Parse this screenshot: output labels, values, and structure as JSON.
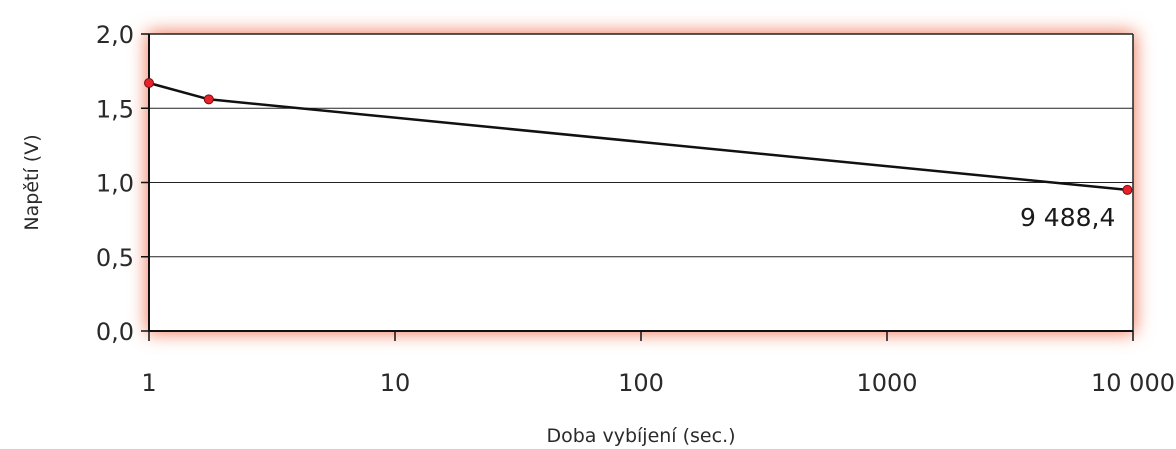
{
  "chart_data": {
    "type": "line",
    "xlabel": "Doba vybíjení (sec.)",
    "ylabel": "Napětí (V)",
    "x_scale": "log",
    "xlim": [
      1,
      10000
    ],
    "ylim": [
      0,
      2
    ],
    "x_ticks": [
      {
        "value": 1,
        "label": "1"
      },
      {
        "value": 10,
        "label": "10"
      },
      {
        "value": 100,
        "label": "100"
      },
      {
        "value": 1000,
        "label": "1000"
      },
      {
        "value": 10000,
        "label": "10 000"
      }
    ],
    "y_ticks": [
      {
        "value": 0,
        "label": "0,0"
      },
      {
        "value": 0.5,
        "label": "0,5"
      },
      {
        "value": 1,
        "label": "1,0"
      },
      {
        "value": 1.5,
        "label": "1,5"
      },
      {
        "value": 2,
        "label": "2,0"
      }
    ],
    "grid": "horizontal",
    "series": [
      {
        "x": [
          1,
          1.75,
          9488.4
        ],
        "y": [
          1.67,
          1.56,
          0.95
        ]
      }
    ],
    "annotations": [
      {
        "text": "9 488,4",
        "x": 9488.4,
        "y": 0.95
      }
    ],
    "colors": {
      "line": "#111111",
      "marker_fill": "#e8222a",
      "marker_stroke": "#7a0d10",
      "frame_glow": "#f07a5a",
      "grid": "#222222"
    }
  }
}
